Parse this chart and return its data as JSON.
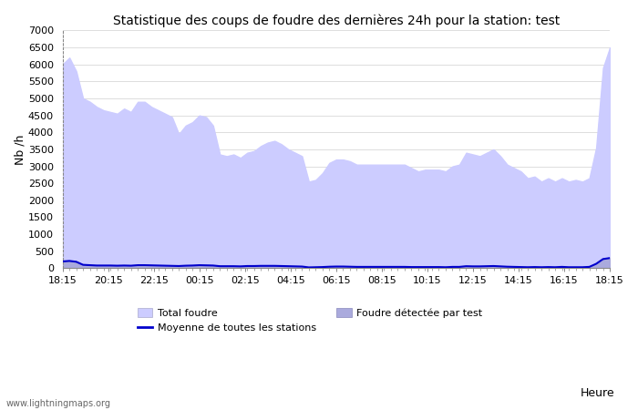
{
  "title": "Statistique des coups de foudre des dernières 24h pour la station: test",
  "xlabel": "Heure",
  "ylabel": "Nb /h",
  "xtick_labels": [
    "18:15",
    "20:15",
    "22:15",
    "00:15",
    "02:15",
    "04:15",
    "06:15",
    "08:15",
    "10:15",
    "12:15",
    "14:15",
    "16:15",
    "18:15"
  ],
  "ylim": [
    0,
    7000
  ],
  "yticks": [
    0,
    500,
    1000,
    1500,
    2000,
    2500,
    3000,
    3500,
    4000,
    4500,
    5000,
    5500,
    6000,
    6500,
    7000
  ],
  "total_foudre_color": "#ccccff",
  "foudre_test_color": "#aaaadd",
  "moyenne_color": "#0000cc",
  "background_color": "#ffffff",
  "watermark": "www.lightningmaps.org",
  "legend_total": "Total foudre",
  "legend_moyenne": "Moyenne de toutes les stations",
  "legend_test": "Foudre détectée par test",
  "total_foudre": [
    6000,
    6200,
    5800,
    5000,
    4900,
    4750,
    4650,
    4600,
    4550,
    4700,
    4600,
    4900,
    4900,
    4750,
    4650,
    4550,
    4450,
    3950,
    4200,
    4300,
    4500,
    4450,
    4200,
    3350,
    3300,
    3350,
    3250,
    3400,
    3450,
    3600,
    3700,
    3750,
    3650,
    3500,
    3400,
    3300,
    2550,
    2600,
    2800,
    3100,
    3200,
    3200,
    3150,
    3050,
    3050,
    3050,
    3050,
    3050,
    3050,
    3050,
    3050,
    2950,
    2850,
    2900,
    2900,
    2900,
    2850,
    3000,
    3050,
    3400,
    3350,
    3300,
    3400,
    3500,
    3300,
    3050,
    2950,
    2850,
    2650,
    2700,
    2550,
    2650,
    2550,
    2650,
    2550,
    2600,
    2550,
    2650,
    3550,
    5900,
    6500
  ],
  "foudre_test": [
    200,
    220,
    200,
    100,
    90,
    80,
    80,
    80,
    75,
    80,
    75,
    90,
    90,
    85,
    80,
    75,
    70,
    65,
    75,
    80,
    90,
    85,
    80,
    60,
    60,
    60,
    55,
    65,
    65,
    70,
    70,
    70,
    65,
    60,
    55,
    50,
    25,
    30,
    35,
    45,
    50,
    50,
    45,
    40,
    40,
    40,
    40,
    40,
    40,
    40,
    40,
    35,
    35,
    35,
    35,
    35,
    30,
    40,
    40,
    60,
    55,
    55,
    60,
    65,
    55,
    45,
    40,
    35,
    30,
    35,
    30,
    35,
    30,
    40,
    30,
    30,
    30,
    40,
    130,
    280,
    310
  ],
  "moyenne": [
    200,
    215,
    190,
    100,
    90,
    80,
    80,
    80,
    75,
    80,
    75,
    90,
    90,
    85,
    80,
    75,
    70,
    65,
    75,
    80,
    90,
    85,
    80,
    60,
    60,
    60,
    55,
    65,
    65,
    70,
    70,
    70,
    65,
    60,
    55,
    50,
    25,
    30,
    35,
    45,
    50,
    50,
    45,
    40,
    40,
    40,
    40,
    40,
    40,
    40,
    40,
    35,
    35,
    35,
    35,
    35,
    30,
    40,
    40,
    60,
    55,
    55,
    60,
    65,
    55,
    45,
    40,
    35,
    30,
    35,
    30,
    35,
    30,
    40,
    30,
    30,
    30,
    40,
    130,
    270,
    300
  ]
}
